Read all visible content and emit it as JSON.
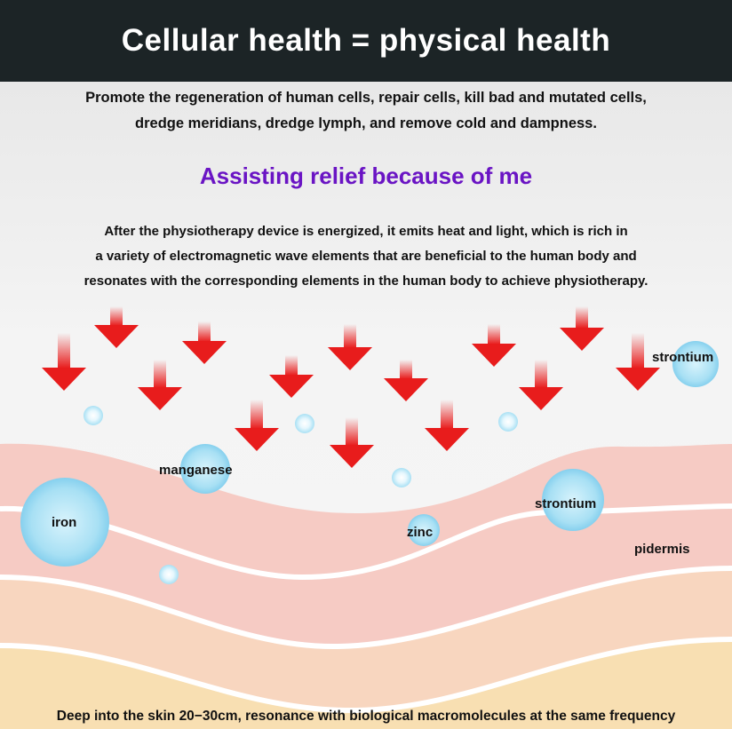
{
  "header": {
    "title": "Cellular health = physical health"
  },
  "intro": {
    "line1": "Promote the regeneration of human cells, repair cells, kill bad and mutated cells,",
    "line2": "dredge meridians, dredge lymph, and remove cold and dampness."
  },
  "subtitle": "Assisting relief because of me",
  "description": {
    "line1": "After the physiotherapy device is energized, it emits heat and light, which is rich in",
    "line2": "a variety of electromagnetic wave elements that are beneficial to the human body and",
    "line3": "resonates with the corresponding elements in the human body to achieve physiotherapy."
  },
  "labels": {
    "strontium_top": "strontium",
    "manganese": "manganese",
    "iron": "iron",
    "zinc": "zinc",
    "strontium": "strontium",
    "pidermis": "pidermis"
  },
  "footer": "Deep into the skin 20−30cm, resonance with biological macromolecules at the same frequency",
  "colors": {
    "header_bg": "#1c2426",
    "subtitle": "#6a14c4",
    "arrow": "#e81c1c",
    "bubble": "#9fdcf2",
    "skin_pink": "#f6cbc4",
    "skin_peach": "#f8d8bc",
    "skin_yellow": "#f8e0b0"
  }
}
